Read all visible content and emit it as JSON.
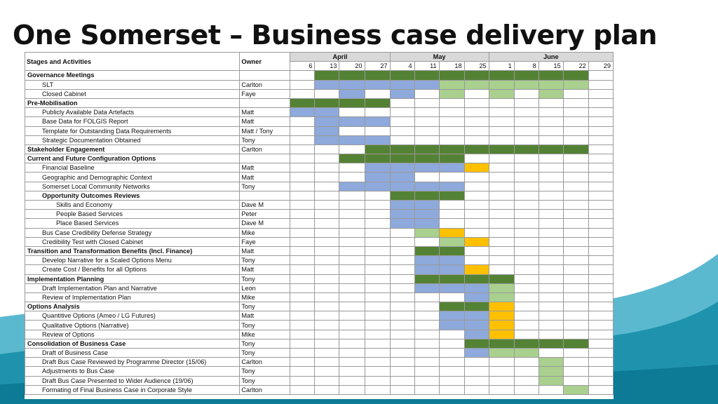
{
  "title": "One Somerset – Business case delivery plan",
  "colors": {
    "green": "#548235",
    "blue": "#8ea9db",
    "light_green": "#a9d08e",
    "orange": "#ffc000"
  },
  "header": {
    "activity_label": "Stages and Activities",
    "owner_label": "Owner",
    "months": [
      {
        "label": "April",
        "span": 4
      },
      {
        "label": "May",
        "span": 4
      },
      {
        "label": "June",
        "span": 5
      }
    ],
    "weeks": [
      "6",
      "13",
      "20",
      "27",
      "4",
      "11",
      "18",
      "25",
      "1",
      "8",
      "15",
      "22",
      "29"
    ]
  },
  "rows": [
    {
      "label": "Governance Meetings",
      "owner": "",
      "level": 0,
      "cells": "-GGGGGGGGGGG-"
    },
    {
      "label": "SLT",
      "owner": "Carlton",
      "level": 1,
      "cells": "-BBBBBLLLLLL-"
    },
    {
      "label": "Closed Cabinet",
      "owner": "Faye",
      "level": 1,
      "cells": "--B-B-L-L-L--"
    },
    {
      "label": "Pre-Mobilisation",
      "owner": "",
      "level": 0,
      "cells": "GGGG---------"
    },
    {
      "label": "Publicly Available Data Artefacts",
      "owner": "Matt",
      "level": 1,
      "cells": "BB-----------"
    },
    {
      "label": "Base Data for FOLGIS Report",
      "owner": "Matt",
      "level": 1,
      "cells": "-BBB---------"
    },
    {
      "label": "Template for Outstanding Data Requirements",
      "owner": "Matt / Tony",
      "level": 1,
      "cells": "-B-----------"
    },
    {
      "label": "Strategic Documentation Obtained",
      "owner": "Tony",
      "level": 1,
      "cells": "-BBB---------"
    },
    {
      "label": "Stakeholder Engagement",
      "owner": "Carlton",
      "level": 0,
      "cells": "---GGGGGGGGG-"
    },
    {
      "label": "Current and Future Configuration Options",
      "owner": "",
      "level": 0,
      "cells": "--GGGGG------"
    },
    {
      "label": "Financial Baseline",
      "owner": "Matt",
      "level": 1,
      "cells": "---BBBBO-----"
    },
    {
      "label": "Geographic and Demographic Context",
      "owner": "Matt",
      "level": 1,
      "cells": "---BB--------"
    },
    {
      "label": "Somerset Local Community Networks",
      "owner": "Tony",
      "level": 1,
      "cells": "--BBBBB------"
    },
    {
      "label": "Opportunity Outcomes Reviews",
      "owner": "",
      "level": 3,
      "cells": "----GGG------"
    },
    {
      "label": "Skills and Economy",
      "owner": "Dave M",
      "level": 2,
      "cells": "----BB-------"
    },
    {
      "label": "People Based Services",
      "owner": "Peter",
      "level": 2,
      "cells": "----BB-------"
    },
    {
      "label": "Place Based Services",
      "owner": "Dave M",
      "level": 2,
      "cells": "----BB-------"
    },
    {
      "label": "Bus Case Credibility Defense Strategy",
      "owner": "Mike",
      "level": 1,
      "cells": "-----LO------"
    },
    {
      "label": "Credibility Test with Closed Cabinet",
      "owner": "Faye",
      "level": 1,
      "cells": "------LO-----"
    },
    {
      "label": "Transition and Transformation Benefits (Incl. Finance)",
      "owner": "Matt",
      "level": 0,
      "cells": "-----GG------"
    },
    {
      "label": "Develop Narrative for a Scaled Options Menu",
      "owner": "Tony",
      "level": 1,
      "cells": "-----BB------"
    },
    {
      "label": "Create Cost / Benefits for all Options",
      "owner": "Matt",
      "level": 1,
      "cells": "-----BBO-----"
    },
    {
      "label": "Implementation Planning",
      "owner": "Tony",
      "level": 0,
      "cells": "-----GGGG----"
    },
    {
      "label": "Draft Implementation Plan and Narrative",
      "owner": "Leon",
      "level": 1,
      "cells": "-----BBBL----"
    },
    {
      "label": "Review of Implementation Plan",
      "owner": "Mike",
      "level": 1,
      "cells": "-------BL----"
    },
    {
      "label": "Options Analysis",
      "owner": "Tony",
      "level": 0,
      "cells": "------GGO----"
    },
    {
      "label": "Quantitive Options (Ameo / LG Futures)",
      "owner": "Matt",
      "level": 1,
      "cells": "------BBO----"
    },
    {
      "label": "Qualitative Options (Narrative)",
      "owner": "Tony",
      "level": 1,
      "cells": "------BBO----"
    },
    {
      "label": "Review of Options",
      "owner": "Mike",
      "level": 1,
      "cells": "-------BO----"
    },
    {
      "label": "Consolidation of Business Case",
      "owner": "Tony",
      "level": 0,
      "cells": "-------GGGGG-"
    },
    {
      "label": "Draft of Business Case",
      "owner": "Tony",
      "level": 1,
      "cells": "-------BLL---"
    },
    {
      "label": "Draft Bus Case Reviewed by Programme Director (15/06)",
      "owner": "Carlton",
      "level": 1,
      "cells": "----------L--"
    },
    {
      "label": "Adjustments to Bus Case",
      "owner": "Tony",
      "level": 1,
      "cells": "----------L--"
    },
    {
      "label": "Draft Bus Case Presented to Wider Audience (19/06)",
      "owner": "Tony",
      "level": 1,
      "cells": "----------L--"
    },
    {
      "label": "Formating of Final Business Case in Corporate Style",
      "owner": "Carlton",
      "level": 1,
      "cells": "-----------L-"
    }
  ]
}
